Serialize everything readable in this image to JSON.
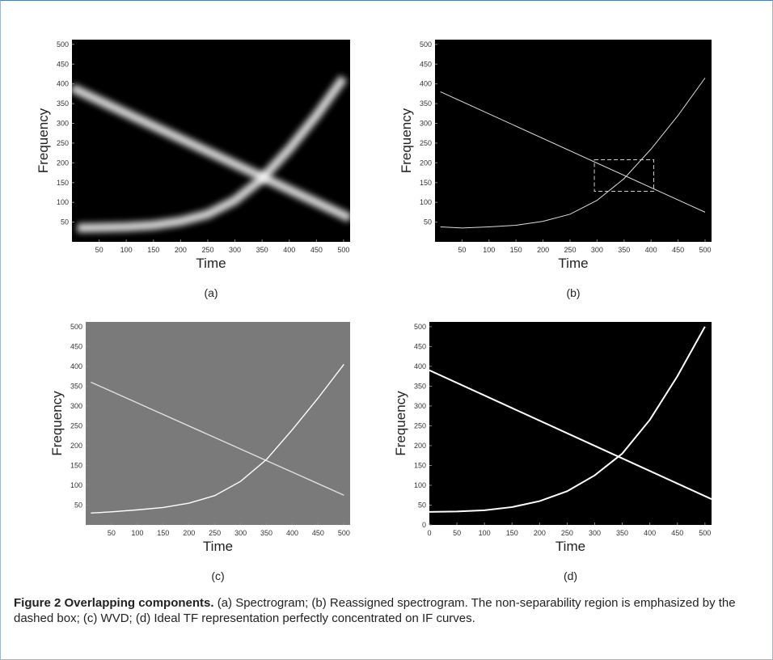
{
  "chart_data": [
    {
      "type": "line",
      "label": "(a)",
      "x_label": "Time",
      "y_label": "Frequency",
      "background": "#000000",
      "xlim": [
        0,
        512
      ],
      "ylim": [
        0,
        512
      ],
      "xticks": [
        50,
        100,
        150,
        200,
        250,
        300,
        350,
        400,
        450,
        500
      ],
      "yticks": [
        50,
        100,
        150,
        200,
        250,
        300,
        350,
        400,
        450,
        500
      ],
      "series": [
        {
          "color": "#ffffff",
          "x": [
            0,
            512
          ],
          "values": [
            390,
            60
          ]
        },
        {
          "color": "#ffffff",
          "x": [
            10,
            50,
            100,
            150,
            200,
            250,
            300,
            350,
            400,
            450,
            500
          ],
          "values": [
            35,
            36,
            38,
            42,
            52,
            70,
            105,
            160,
            235,
            320,
            415
          ]
        }
      ]
    },
    {
      "type": "line",
      "label": "(b)",
      "x_label": "Time",
      "y_label": "Frequency",
      "background": "#000000",
      "xlim": [
        0,
        512
      ],
      "ylim": [
        0,
        512
      ],
      "xticks": [
        50,
        100,
        150,
        200,
        250,
        300,
        350,
        400,
        450,
        500
      ],
      "yticks": [
        50,
        100,
        150,
        200,
        250,
        300,
        350,
        400,
        450,
        500
      ],
      "series": [
        {
          "color": "#dddddd",
          "x": [
            10,
            500
          ],
          "values": [
            380,
            75
          ]
        },
        {
          "color": "#dddddd",
          "x": [
            10,
            50,
            100,
            150,
            200,
            250,
            300,
            350,
            400,
            450,
            500
          ],
          "values": [
            38,
            35,
            38,
            42,
            52,
            70,
            105,
            160,
            235,
            320,
            415
          ]
        }
      ],
      "box": {
        "x": [
          295,
          405
        ],
        "y": [
          128,
          208
        ]
      }
    },
    {
      "type": "line",
      "label": "(c)",
      "x_label": "Time",
      "y_label": "Frequency",
      "background": "#7a7a7a",
      "xlim": [
        0,
        512
      ],
      "ylim": [
        0,
        512
      ],
      "xticks": [
        50,
        100,
        150,
        200,
        250,
        300,
        350,
        400,
        450,
        500
      ],
      "yticks": [
        50,
        100,
        150,
        200,
        250,
        300,
        350,
        400,
        450,
        500
      ],
      "series": [
        {
          "color": "#e0e0e0",
          "x": [
            10,
            500
          ],
          "values": [
            360,
            75
          ]
        },
        {
          "color": "#ffffff",
          "x": [
            10,
            50,
            100,
            150,
            200,
            250,
            300,
            350,
            400,
            450,
            500
          ],
          "values": [
            30,
            33,
            38,
            44,
            55,
            74,
            110,
            165,
            240,
            320,
            405
          ]
        }
      ]
    },
    {
      "type": "line",
      "label": "(d)",
      "x_label": "Time",
      "y_label": "Frequency",
      "background": "#000000",
      "xlim": [
        0,
        512
      ],
      "ylim": [
        0,
        512
      ],
      "xticks": [
        0,
        50,
        100,
        150,
        200,
        250,
        300,
        350,
        400,
        450,
        500
      ],
      "yticks": [
        0,
        50,
        100,
        150,
        200,
        250,
        300,
        350,
        400,
        450,
        500
      ],
      "series": [
        {
          "color": "#ffffff",
          "x": [
            0,
            512
          ],
          "values": [
            390,
            65
          ]
        },
        {
          "color": "#ffffff",
          "x": [
            0,
            50,
            100,
            150,
            200,
            250,
            300,
            350,
            400,
            450,
            500
          ],
          "values": [
            33,
            34,
            37,
            45,
            60,
            85,
            125,
            180,
            265,
            375,
            500
          ]
        }
      ]
    }
  ],
  "caption": {
    "label": "Figure 2 Overlapping components.",
    "text": " (a) Spectrogram; (b) Reassigned spectrogram. The non-separability region is emphasized by the dashed box; (c) WVD; (d) Ideal TF representation perfectly concentrated on IF curves."
  }
}
